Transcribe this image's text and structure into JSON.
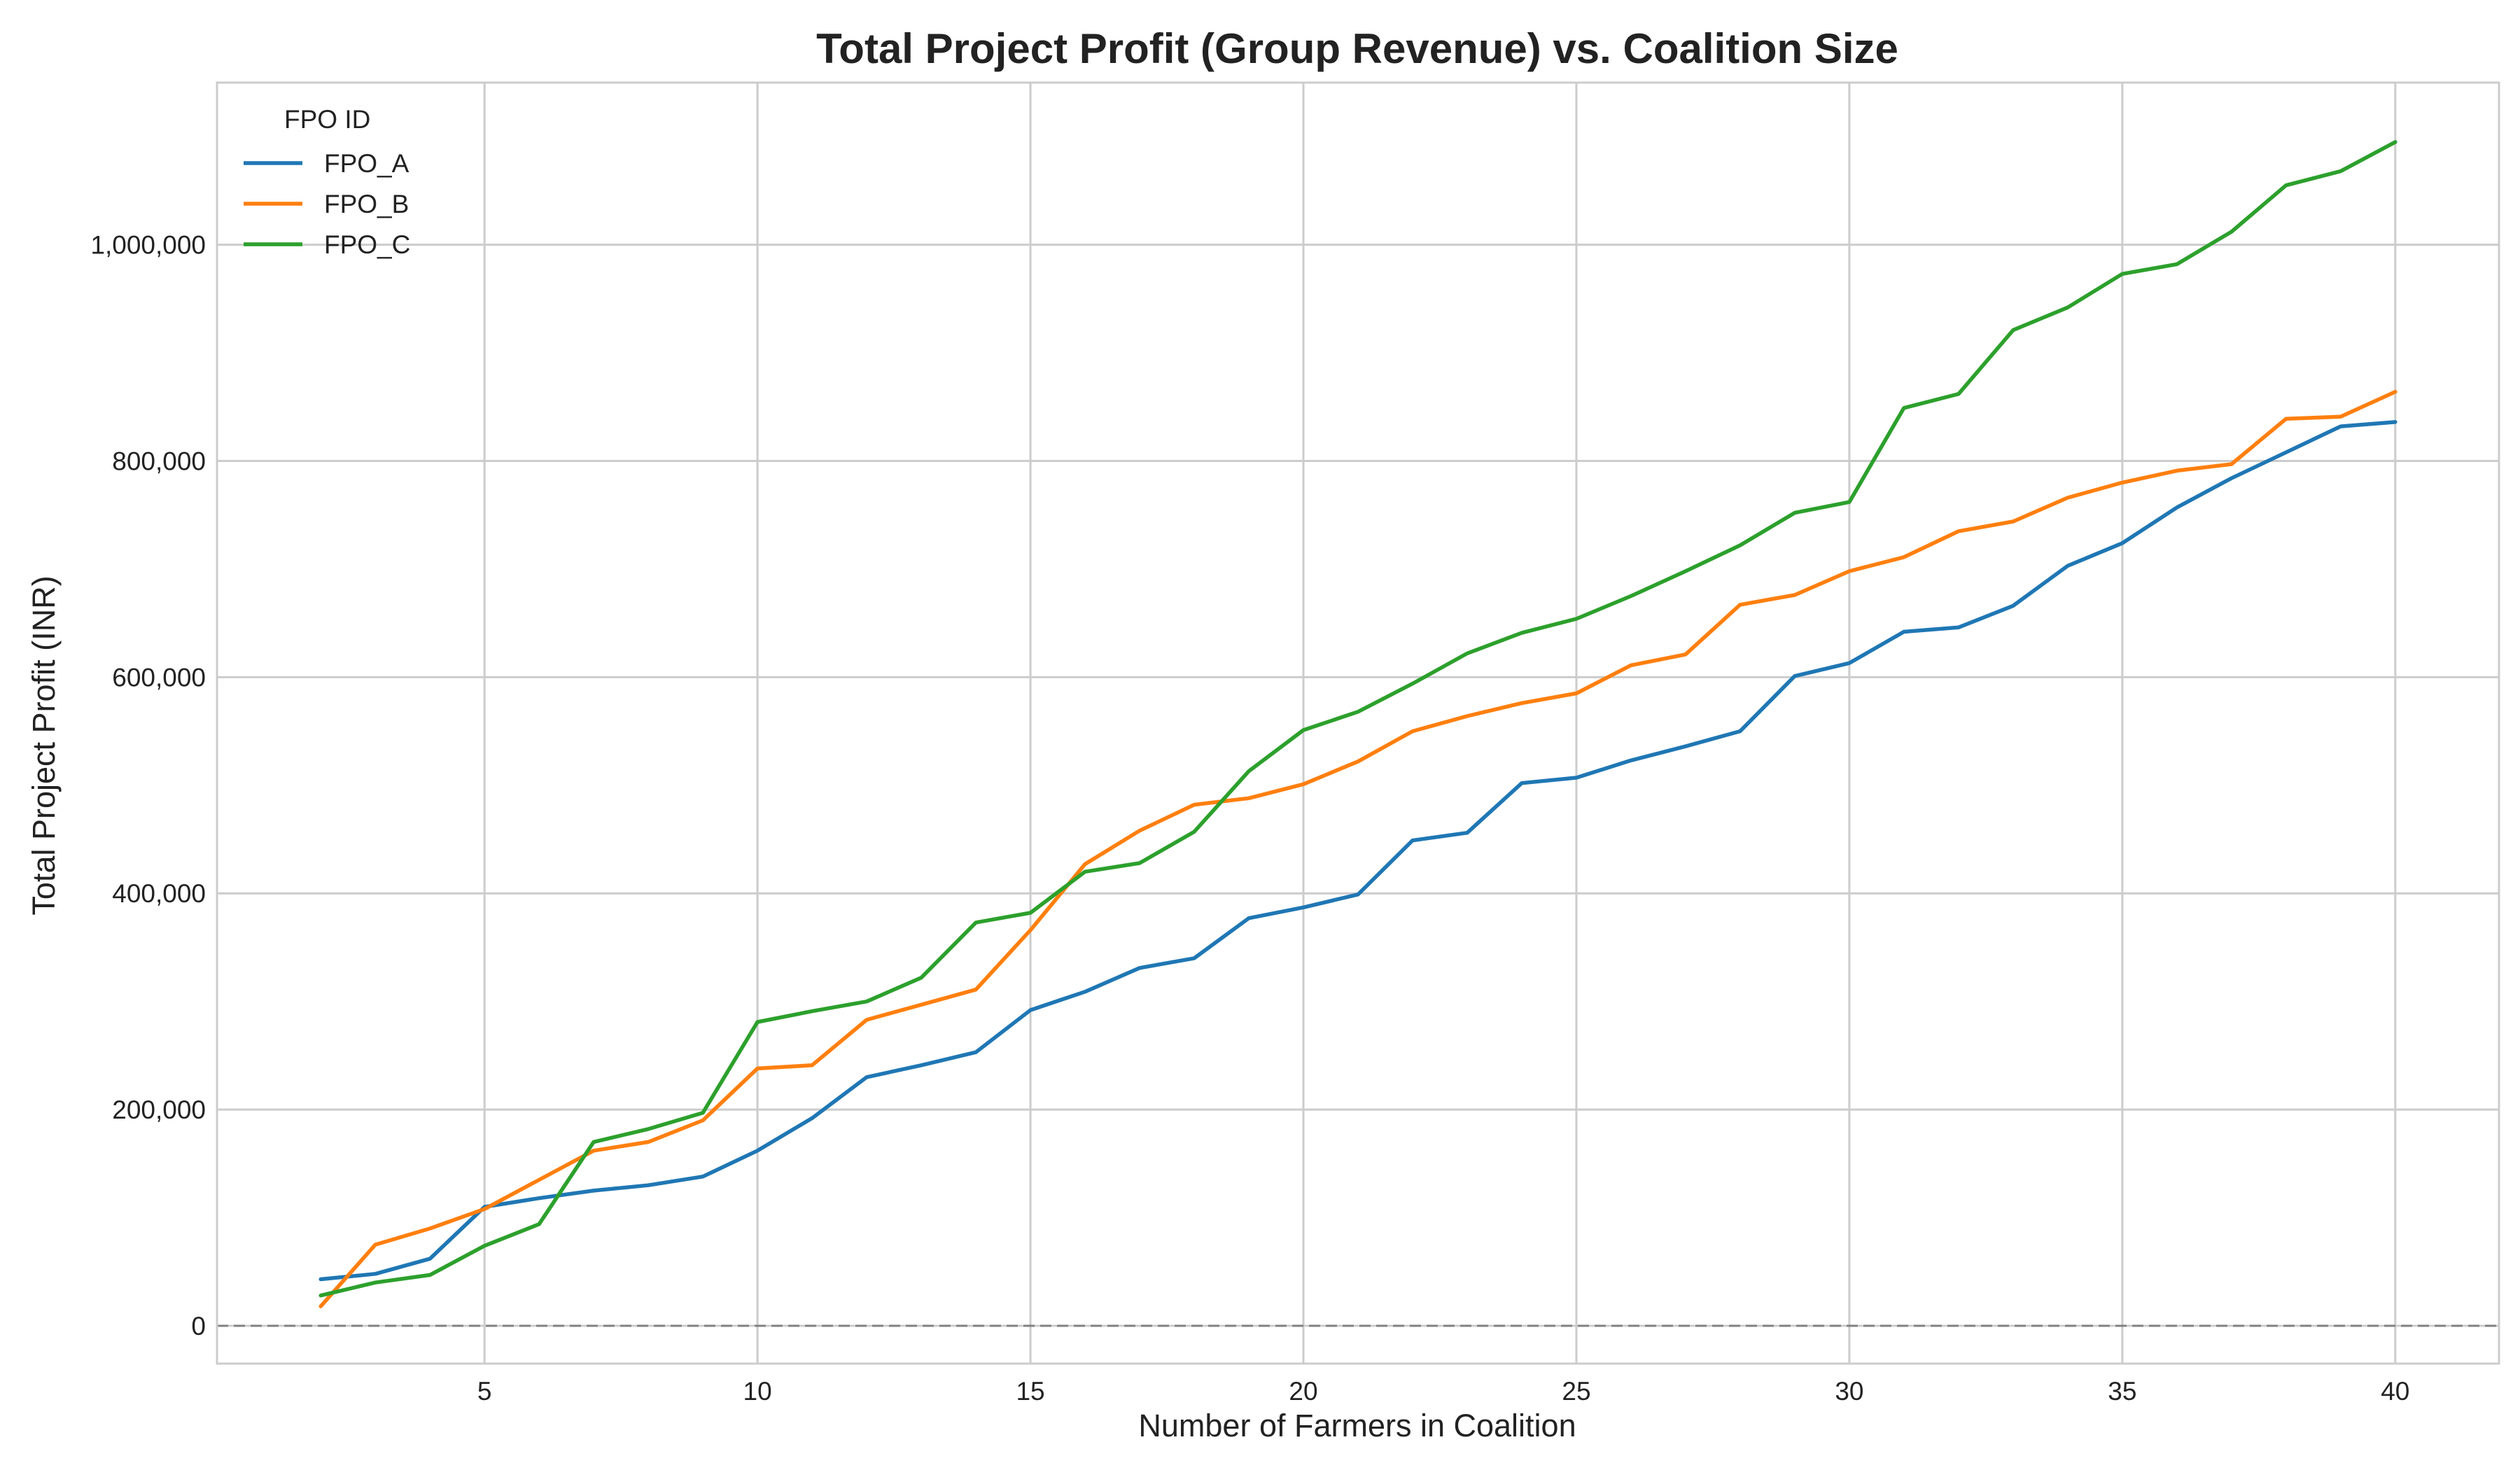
{
  "chart_data": {
    "type": "line",
    "title": "Total Project Profit (Group Revenue) vs. Coalition Size",
    "xlabel": "Number of Farmers in Coalition",
    "ylabel": "Total Project Profit (INR)",
    "xlim": [
      0.1,
      41.9
    ],
    "ylim": [
      -35000,
      1150000
    ],
    "xticks": [
      5,
      10,
      15,
      20,
      25,
      30,
      35,
      40
    ],
    "yticks": [
      0,
      200000,
      400000,
      600000,
      800000,
      1000000
    ],
    "ytick_labels": [
      "0",
      "200,000",
      "400,000",
      "600,000",
      "800,000",
      "1,000,000"
    ],
    "grid": true,
    "reference_line": {
      "y": 0,
      "style": "dashed",
      "color": "#808080"
    },
    "legend": {
      "title": "FPO ID",
      "position": "top-left"
    },
    "x": [
      2,
      3,
      4,
      5,
      6,
      7,
      8,
      9,
      10,
      11,
      12,
      13,
      14,
      15,
      16,
      17,
      18,
      19,
      20,
      21,
      22,
      23,
      24,
      25,
      26,
      27,
      28,
      29,
      30,
      31,
      32,
      33,
      34,
      35,
      36,
      37,
      38,
      39,
      40
    ],
    "series": [
      {
        "name": "FPO_A",
        "color": "#1f77b4",
        "values": [
          43000,
          48000,
          62000,
          110000,
          118000,
          125000,
          130000,
          138000,
          162000,
          192000,
          230000,
          241000,
          253000,
          292000,
          309000,
          331000,
          340000,
          377000,
          387000,
          399000,
          449000,
          456000,
          502000,
          507000,
          523000,
          536000,
          550000,
          601000,
          613000,
          642000,
          646000,
          666000,
          703000,
          724000,
          757000,
          784000,
          808000,
          832000,
          836000
        ]
      },
      {
        "name": "FPO_B",
        "color": "#ff7f0e",
        "values": [
          18000,
          75000,
          90000,
          108000,
          135000,
          162000,
          170000,
          190000,
          238000,
          241000,
          283000,
          297000,
          311000,
          366000,
          427000,
          458000,
          482000,
          488000,
          501000,
          522000,
          550000,
          564000,
          576000,
          585000,
          611000,
          621000,
          667000,
          676000,
          698000,
          711000,
          735000,
          744000,
          766000,
          780000,
          791000,
          797000,
          839000,
          841000,
          864000
        ]
      },
      {
        "name": "FPO_C",
        "color": "#2ca02c",
        "values": [
          28000,
          40000,
          47000,
          74000,
          94000,
          170000,
          182000,
          197000,
          281000,
          291000,
          300000,
          322000,
          373000,
          382000,
          420000,
          428000,
          457000,
          513000,
          551000,
          568000,
          594000,
          622000,
          641000,
          654000,
          675000,
          698000,
          722000,
          752000,
          762000,
          849000,
          862000,
          921000,
          942000,
          973000,
          982000,
          1012000,
          1055000,
          1068000,
          1095000
        ]
      }
    ]
  }
}
